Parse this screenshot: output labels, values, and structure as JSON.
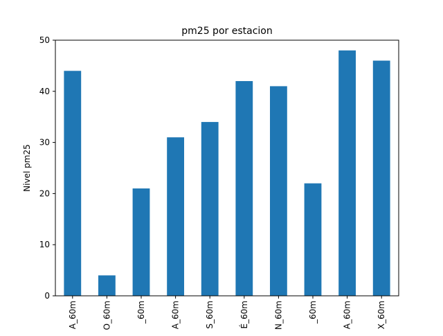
{
  "chart_data": {
    "type": "bar",
    "title": "pm25 por estacion",
    "xlabel": "",
    "ylabel": "Nivel pm25",
    "ylim": [
      0,
      50
    ],
    "yticks": [
      0,
      10,
      20,
      30,
      40,
      50
    ],
    "categories": [
      "A_60m",
      "O_60m",
      "_60m",
      "A_60m",
      "S_60m",
      "É_60m",
      "N_60m",
      "_60m",
      "A_60m",
      "X_60m"
    ],
    "values": [
      44,
      4,
      21,
      31,
      34,
      42,
      41,
      22,
      48,
      46
    ],
    "bar_color": "#1f77b4",
    "grid": false,
    "legend": "none"
  }
}
